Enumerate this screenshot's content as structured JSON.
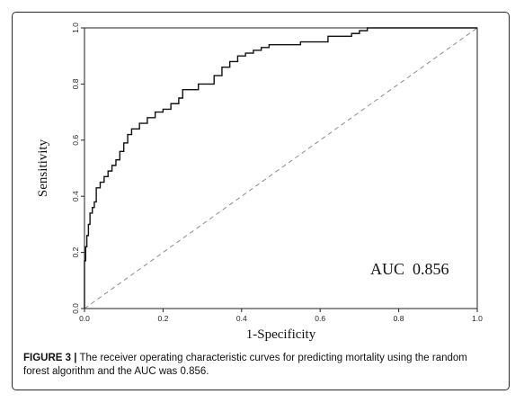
{
  "caption": {
    "label": "FIGURE 3 |",
    "text": " The receiver operating characteristic curves for predicting mortality using the random forest algorithm and the AUC was 0.856."
  },
  "colors": {
    "curve": "#111111",
    "diagonal": "#8a8a8a",
    "axis": "#222222"
  },
  "chart_data": {
    "type": "line",
    "title": "",
    "xlabel": "1-Specificity",
    "ylabel": "Sensitivity",
    "xlim": [
      0,
      1
    ],
    "ylim": [
      0,
      1
    ],
    "grid": false,
    "x_ticks": [
      "0.0",
      "0.2",
      "0.4",
      "0.6",
      "0.8",
      "1.0"
    ],
    "y_ticks": [
      "0.0",
      "0.2",
      "0.4",
      "0.6",
      "0.8",
      "1.0"
    ],
    "annotation": "AUC  0.856",
    "series": [
      {
        "style": "solid-step",
        "points": [
          [
            0.0,
            0.0
          ],
          [
            0.0,
            0.1
          ],
          [
            0.003,
            0.17
          ],
          [
            0.006,
            0.22
          ],
          [
            0.01,
            0.26
          ],
          [
            0.014,
            0.3
          ],
          [
            0.02,
            0.34
          ],
          [
            0.025,
            0.36
          ],
          [
            0.03,
            0.38
          ],
          [
            0.04,
            0.43
          ],
          [
            0.05,
            0.45
          ],
          [
            0.06,
            0.47
          ],
          [
            0.07,
            0.49
          ],
          [
            0.08,
            0.51
          ],
          [
            0.09,
            0.53
          ],
          [
            0.1,
            0.56
          ],
          [
            0.11,
            0.59
          ],
          [
            0.12,
            0.62
          ],
          [
            0.14,
            0.64
          ],
          [
            0.16,
            0.66
          ],
          [
            0.18,
            0.68
          ],
          [
            0.2,
            0.7
          ],
          [
            0.22,
            0.71
          ],
          [
            0.24,
            0.73
          ],
          [
            0.25,
            0.75
          ],
          [
            0.26,
            0.78
          ],
          [
            0.29,
            0.78
          ],
          [
            0.3,
            0.8
          ],
          [
            0.33,
            0.8
          ],
          [
            0.35,
            0.83
          ],
          [
            0.37,
            0.86
          ],
          [
            0.39,
            0.88
          ],
          [
            0.41,
            0.9
          ],
          [
            0.43,
            0.91
          ],
          [
            0.45,
            0.92
          ],
          [
            0.47,
            0.93
          ],
          [
            0.5,
            0.94
          ],
          [
            0.55,
            0.94
          ],
          [
            0.58,
            0.95
          ],
          [
            0.62,
            0.95
          ],
          [
            0.64,
            0.97
          ],
          [
            0.68,
            0.97
          ],
          [
            0.7,
            0.98
          ],
          [
            0.72,
            0.99
          ],
          [
            0.73,
            1.0
          ],
          [
            1.0,
            1.0
          ]
        ]
      },
      {
        "style": "dashed",
        "points": [
          [
            0,
            0
          ],
          [
            1,
            1
          ]
        ]
      }
    ]
  }
}
